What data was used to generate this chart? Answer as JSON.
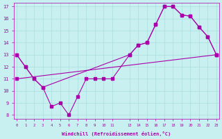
{
  "bg_color": "#c8f0f0",
  "line_color": "#aa00aa",
  "grid_color": "#aadddd",
  "xlabel": "Windchill (Refroidissement éolien,°C)",
  "xlabel_color": "#aa00aa",
  "ylabel_color": "#aa00aa",
  "tick_color": "#aa00aa",
  "xlim": [
    0,
    23
  ],
  "ylim": [
    8,
    17
  ],
  "xticks": [
    0,
    1,
    2,
    3,
    4,
    5,
    6,
    7,
    8,
    9,
    10,
    11,
    13,
    14,
    15,
    16,
    17,
    18,
    19,
    20,
    21,
    22,
    23
  ],
  "yticks": [
    8,
    9,
    10,
    11,
    12,
    13,
    14,
    15,
    16,
    17
  ],
  "line1_x": [
    0,
    1,
    2,
    3,
    4,
    5,
    6,
    7,
    8,
    9,
    10,
    11,
    13,
    14,
    15,
    16,
    17,
    18,
    19,
    20,
    21,
    22,
    23
  ],
  "line1_y": [
    13,
    12,
    11,
    10.3,
    8.7,
    9,
    8,
    9.5,
    11,
    11,
    11,
    11,
    13,
    13.8,
    14,
    15.5,
    17,
    17,
    16.3,
    16.2,
    15.3,
    14.5,
    13
  ],
  "line3_x": [
    0,
    23
  ],
  "line3_y": [
    11,
    13
  ],
  "line4_x": [
    0,
    1,
    2,
    3,
    13,
    14,
    15,
    16,
    17,
    18,
    19,
    20,
    21,
    22,
    23
  ],
  "line4_y": [
    13,
    12,
    11,
    10.3,
    13,
    13.8,
    14,
    15.5,
    17,
    17,
    16.3,
    16.2,
    15.3,
    14.5,
    13
  ]
}
